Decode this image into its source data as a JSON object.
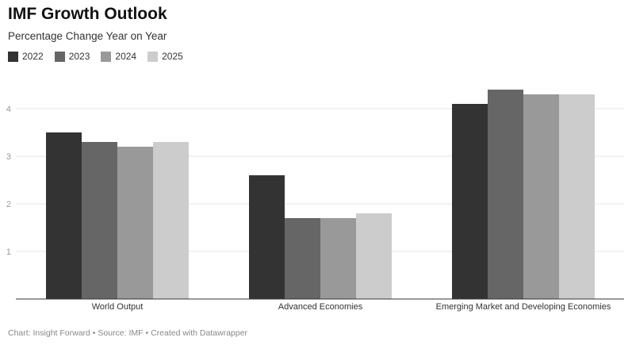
{
  "chart_data": {
    "type": "bar",
    "title": "IMF Growth Outlook",
    "subtitle": "Percentage Change Year on Year",
    "categories": [
      "World Output",
      "Advanced Economies",
      "Emerging Market and Developing Economies"
    ],
    "series": [
      {
        "name": "2022",
        "color": "#333333",
        "values": [
          3.5,
          2.6,
          4.1
        ]
      },
      {
        "name": "2023",
        "color": "#666666",
        "values": [
          3.3,
          1.7,
          4.4
        ]
      },
      {
        "name": "2024",
        "color": "#999999",
        "values": [
          3.2,
          1.7,
          4.3
        ]
      },
      {
        "name": "2025",
        "color": "#cccccc",
        "values": [
          3.3,
          1.8,
          4.3
        ]
      }
    ],
    "y_ticks": [
      "1",
      "2",
      "3",
      "4"
    ],
    "ylim": [
      0,
      4.5
    ],
    "grid": true,
    "legend_position": "top-left"
  },
  "footer": "Chart: Insight Forward • Source: IMF • Created with Datawrapper"
}
